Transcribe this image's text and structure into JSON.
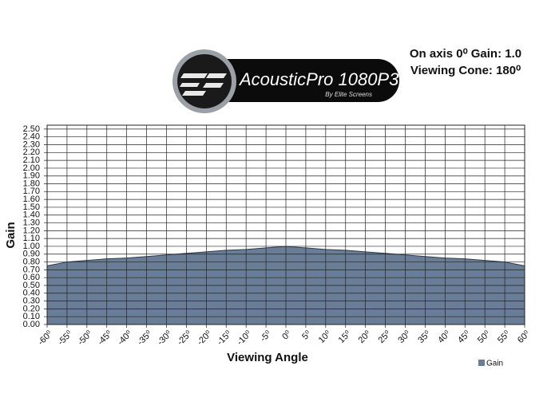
{
  "logo": {
    "brand": "AcousticPro 1080P3",
    "tagline": "By Elite Screens"
  },
  "chart_data": {
    "type": "area",
    "annotations": [
      "On axis 0⁰ Gain: 1.0",
      "Viewing Cone: 180⁰"
    ],
    "x_label": "Viewing Angle",
    "y_label": "Gain",
    "x": [
      -60,
      -55,
      -50,
      -45,
      -40,
      -35,
      -30,
      -25,
      -20,
      -15,
      -10,
      -5,
      0,
      5,
      10,
      15,
      20,
      25,
      30,
      35,
      40,
      45,
      50,
      55,
      60
    ],
    "series": [
      {
        "name": "Gain",
        "color": "#6a7d97",
        "values": [
          0.75,
          0.8,
          0.82,
          0.84,
          0.85,
          0.87,
          0.89,
          0.91,
          0.93,
          0.95,
          0.96,
          0.98,
          1.0,
          0.98,
          0.96,
          0.95,
          0.93,
          0.91,
          0.89,
          0.87,
          0.85,
          0.84,
          0.82,
          0.8,
          0.75
        ]
      }
    ],
    "xlim": [
      -60,
      60
    ],
    "ylim": [
      0,
      2.55
    ],
    "xticks": [
      {
        "value": -60,
        "label": "-60⁰"
      },
      {
        "value": -55,
        "label": "-55⁰"
      },
      {
        "value": -50,
        "label": "-50⁰"
      },
      {
        "value": -45,
        "label": "-45⁰"
      },
      {
        "value": -40,
        "label": "-40⁰"
      },
      {
        "value": -35,
        "label": "-35⁰"
      },
      {
        "value": -30,
        "label": "-30⁰"
      },
      {
        "value": -25,
        "label": "-25⁰"
      },
      {
        "value": -20,
        "label": "-20⁰"
      },
      {
        "value": -15,
        "label": "-15⁰"
      },
      {
        "value": -10,
        "label": "-10⁰"
      },
      {
        "value": -5,
        "label": "-5⁰"
      },
      {
        "value": 0,
        "label": "0⁰"
      },
      {
        "value": 5,
        "label": "5⁰"
      },
      {
        "value": 10,
        "label": "10⁰"
      },
      {
        "value": 15,
        "label": "15⁰"
      },
      {
        "value": 20,
        "label": "20⁰"
      },
      {
        "value": 25,
        "label": "25⁰"
      },
      {
        "value": 30,
        "label": "30⁰"
      },
      {
        "value": 35,
        "label": "35⁰"
      },
      {
        "value": 40,
        "label": "40⁰"
      },
      {
        "value": 45,
        "label": "45⁰"
      },
      {
        "value": 50,
        "label": "50⁰"
      },
      {
        "value": 55,
        "label": "55⁰"
      },
      {
        "value": 60,
        "label": "60⁰"
      }
    ],
    "yticks": [
      {
        "value": 0,
        "label": "0.00"
      },
      {
        "value": 0.1,
        "label": "0.10"
      },
      {
        "value": 0.2,
        "label": "0.20"
      },
      {
        "value": 0.3,
        "label": "0.30"
      },
      {
        "value": 0.4,
        "label": "0.40"
      },
      {
        "value": 0.5,
        "label": "0.50"
      },
      {
        "value": 0.6,
        "label": "0.60"
      },
      {
        "value": 0.7,
        "label": "0.70"
      },
      {
        "value": 0.8,
        "label": "0.80"
      },
      {
        "value": 0.9,
        "label": "0.90"
      },
      {
        "value": 1,
        "label": "1.00"
      },
      {
        "value": 1.1,
        "label": "1.10"
      },
      {
        "value": 1.2,
        "label": "1.20"
      },
      {
        "value": 1.3,
        "label": "1.30"
      },
      {
        "value": 1.4,
        "label": "1.40"
      },
      {
        "value": 1.5,
        "label": "1.50"
      },
      {
        "value": 1.6,
        "label": "1.60"
      },
      {
        "value": 1.7,
        "label": "1.70"
      },
      {
        "value": 1.8,
        "label": "1.80"
      },
      {
        "value": 1.9,
        "label": "1.90"
      },
      {
        "value": 2,
        "label": "2.00"
      },
      {
        "value": 2.1,
        "label": "2.10"
      },
      {
        "value": 2.2,
        "label": "2.20"
      },
      {
        "value": 2.3,
        "label": "2.30"
      },
      {
        "value": 2.4,
        "label": "2.40"
      },
      {
        "value": 2.5,
        "label": "2.50"
      }
    ],
    "grid": true,
    "legend": "bottom-right"
  }
}
